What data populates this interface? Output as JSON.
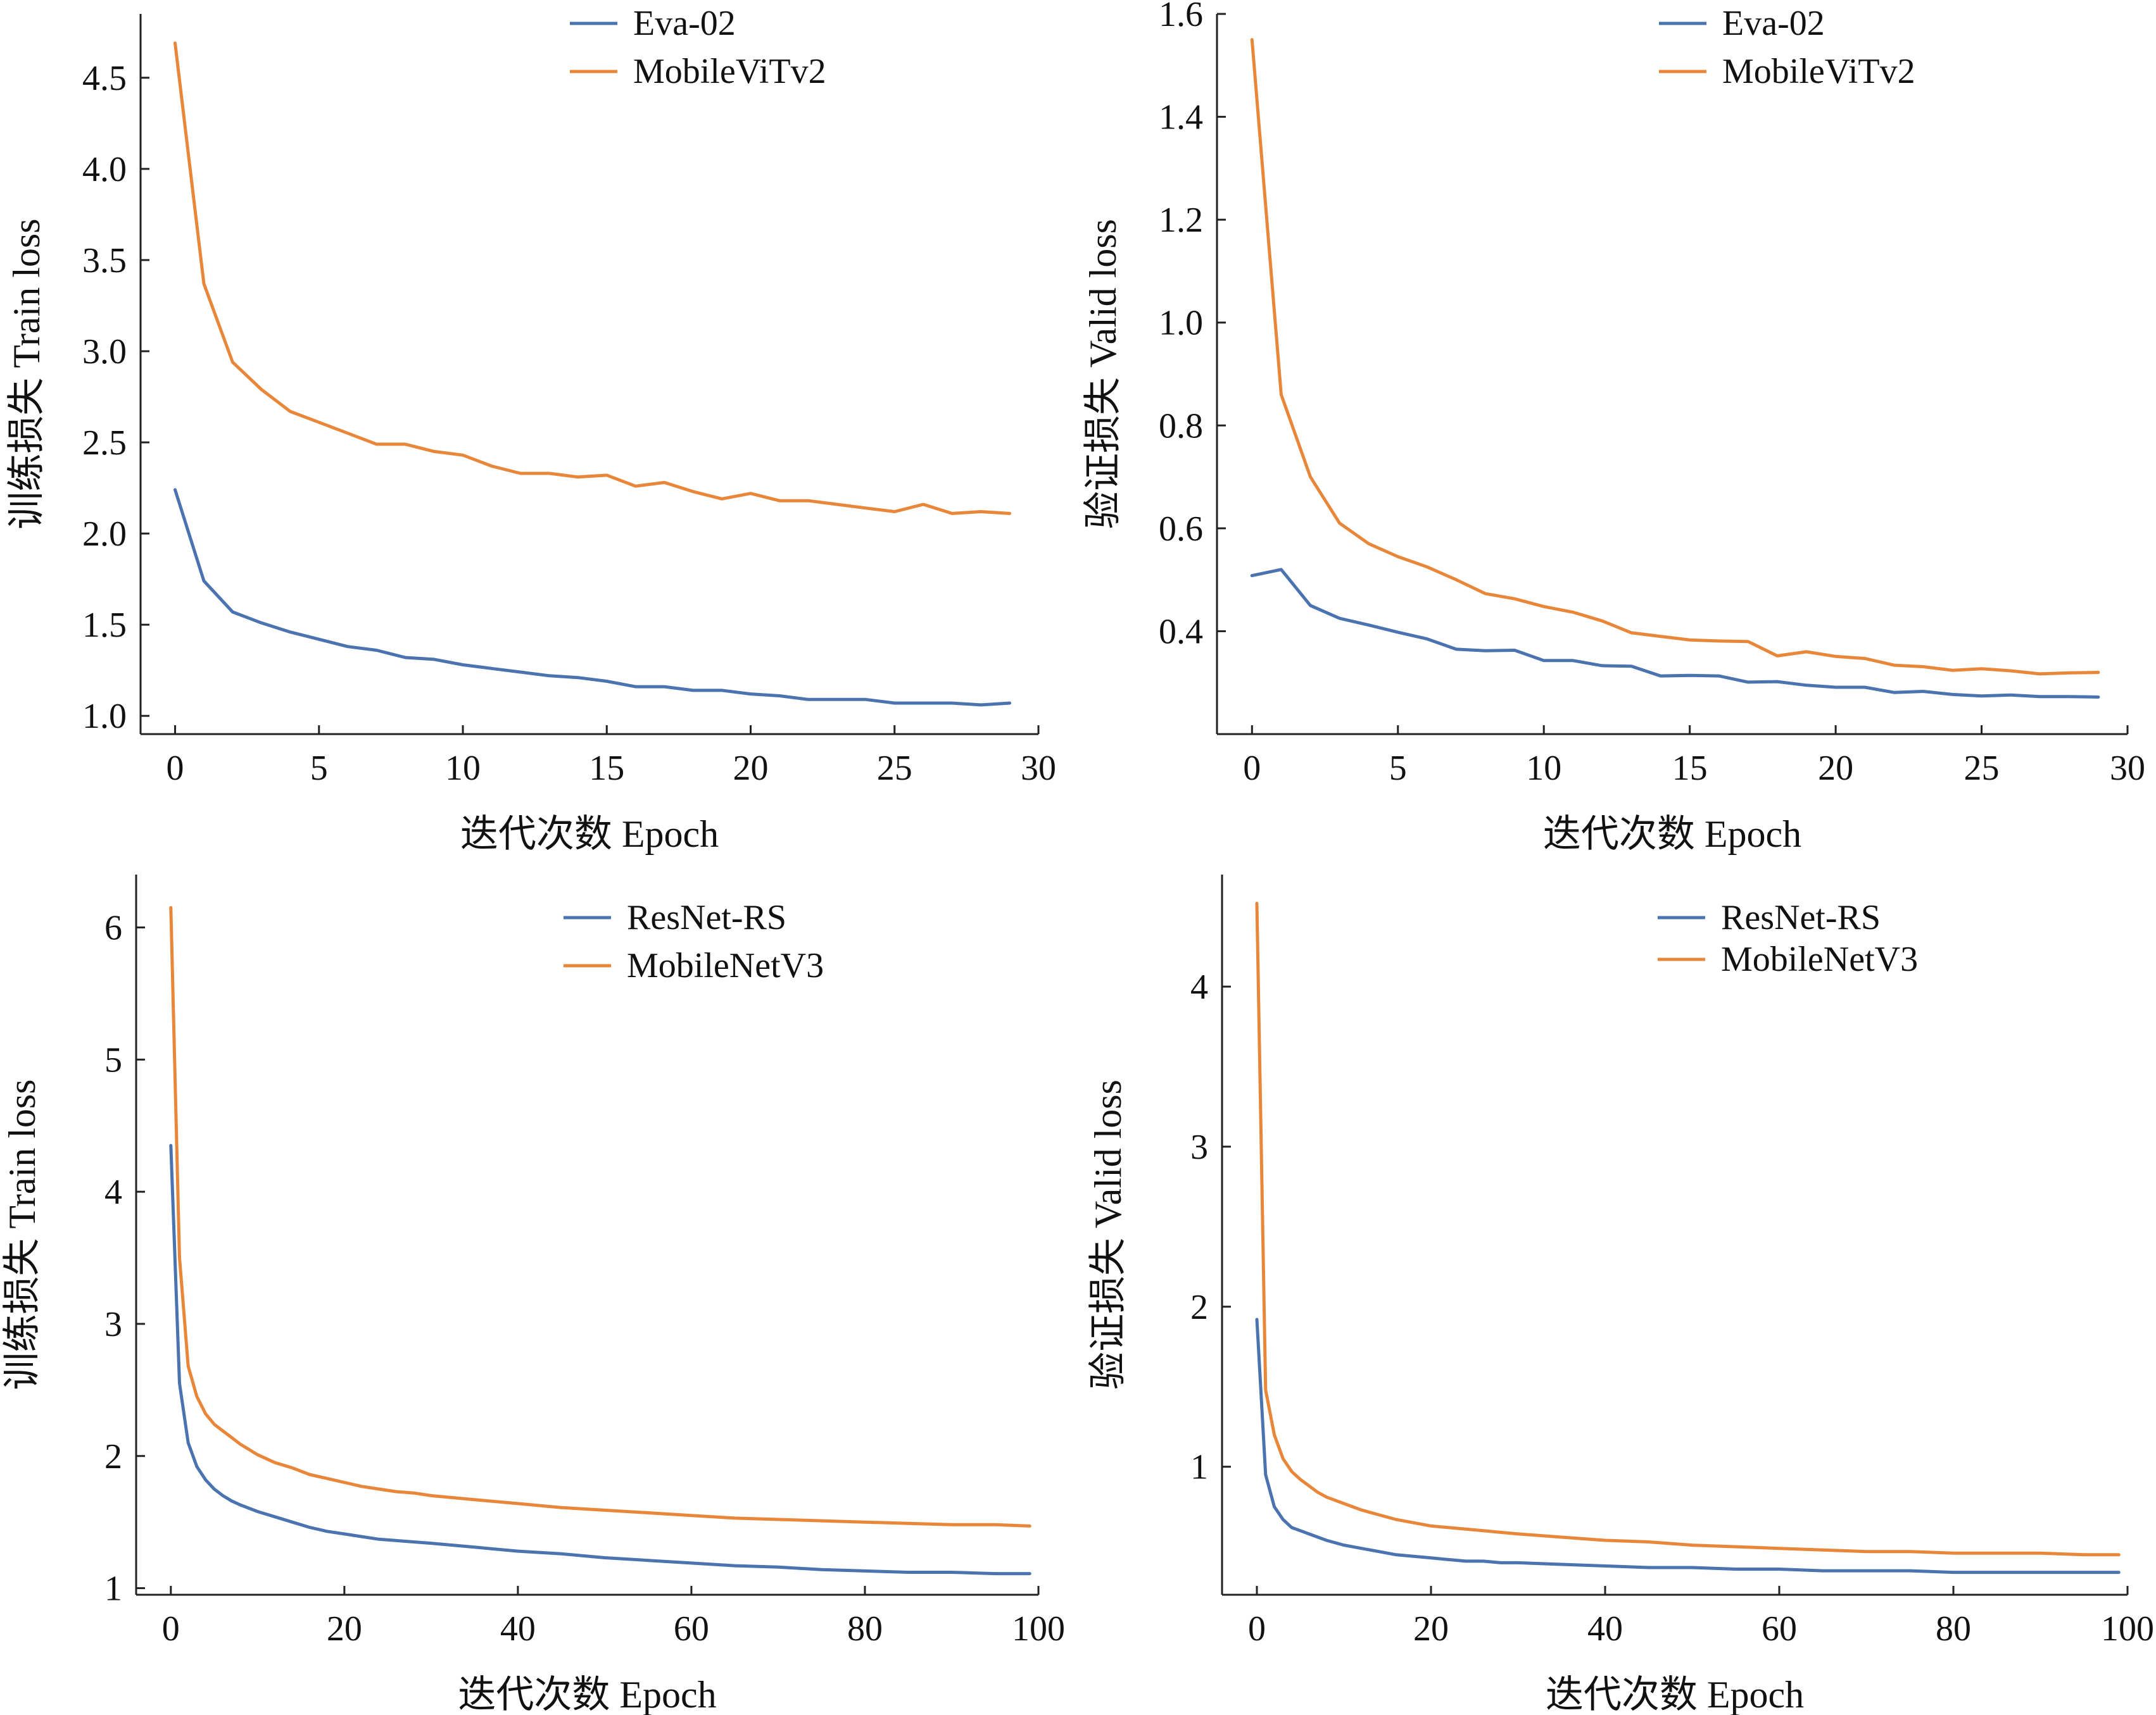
{
  "colors": {
    "blue": "#4a73b0",
    "orange": "#e8873a",
    "axis": "#222222"
  },
  "chart_data": [
    {
      "type": "line",
      "xlabel": "迭代次数 Epoch",
      "ylabel": "训练损失 Train loss",
      "xlim": [
        -1.2,
        30
      ],
      "ylim": [
        0.9,
        4.85
      ],
      "xticks": [
        0,
        5,
        10,
        15,
        20,
        25,
        30
      ],
      "yticks": [
        1.0,
        1.5,
        2.0,
        2.5,
        3.0,
        3.5,
        4.0,
        4.5
      ],
      "y_decimals": 1,
      "legend": "top-right",
      "series": [
        {
          "name": "Eva-02",
          "color": "#4a73b0",
          "x": [
            0,
            1,
            2,
            3,
            4,
            5,
            6,
            7,
            8,
            9,
            10,
            11,
            12,
            13,
            14,
            15,
            16,
            17,
            18,
            19,
            20,
            21,
            22,
            23,
            24,
            25,
            26,
            27,
            28,
            29
          ],
          "y": [
            2.24,
            1.74,
            1.57,
            1.51,
            1.46,
            1.42,
            1.38,
            1.36,
            1.32,
            1.31,
            1.28,
            1.26,
            1.24,
            1.22,
            1.21,
            1.19,
            1.16,
            1.16,
            1.14,
            1.14,
            1.12,
            1.11,
            1.09,
            1.09,
            1.09,
            1.07,
            1.07,
            1.07,
            1.06,
            1.07
          ]
        },
        {
          "name": "MobileViTv2",
          "color": "#e8873a",
          "x": [
            0,
            1,
            2,
            3,
            4,
            5,
            6,
            7,
            8,
            9,
            10,
            11,
            12,
            13,
            14,
            15,
            16,
            17,
            18,
            19,
            20,
            21,
            22,
            23,
            24,
            25,
            26,
            27,
            28,
            29
          ],
          "y": [
            4.69,
            3.37,
            2.94,
            2.79,
            2.67,
            2.61,
            2.55,
            2.49,
            2.49,
            2.45,
            2.43,
            2.37,
            2.33,
            2.33,
            2.31,
            2.32,
            2.26,
            2.28,
            2.23,
            2.19,
            2.22,
            2.18,
            2.18,
            2.16,
            2.14,
            2.12,
            2.16,
            2.11,
            2.12,
            2.11
          ]
        }
      ]
    },
    {
      "type": "line",
      "xlabel": "迭代次数 Epoch",
      "ylabel": "验证损失 Valid loss",
      "xlim": [
        -1.2,
        30
      ],
      "ylim": [
        0.2,
        1.6
      ],
      "xticks": [
        0,
        5,
        10,
        15,
        20,
        25,
        30
      ],
      "yticks": [
        0.4,
        0.6,
        0.8,
        1.0,
        1.2,
        1.4,
        1.6
      ],
      "y_decimals": 1,
      "legend": "top-right",
      "series": [
        {
          "name": "Eva-02",
          "color": "#4a73b0",
          "x": [
            0,
            1,
            2,
            3,
            4,
            5,
            6,
            7,
            8,
            9,
            10,
            11,
            12,
            13,
            14,
            15,
            16,
            17,
            18,
            19,
            20,
            21,
            22,
            23,
            24,
            25,
            26,
            27,
            28,
            29
          ],
          "y": [
            0.508,
            0.52,
            0.45,
            0.425,
            0.412,
            0.398,
            0.385,
            0.365,
            0.362,
            0.363,
            0.343,
            0.343,
            0.333,
            0.332,
            0.313,
            0.314,
            0.313,
            0.301,
            0.302,
            0.295,
            0.291,
            0.291,
            0.281,
            0.283,
            0.277,
            0.274,
            0.276,
            0.273,
            0.273,
            0.272
          ]
        },
        {
          "name": "MobileViTv2",
          "color": "#e8873a",
          "x": [
            0,
            1,
            2,
            3,
            4,
            5,
            6,
            7,
            8,
            9,
            10,
            11,
            12,
            13,
            14,
            15,
            16,
            17,
            18,
            19,
            20,
            21,
            22,
            23,
            24,
            25,
            26,
            27,
            28,
            29
          ],
          "y": [
            1.55,
            0.86,
            0.7,
            0.61,
            0.57,
            0.545,
            0.525,
            0.5,
            0.473,
            0.463,
            0.448,
            0.437,
            0.42,
            0.397,
            0.39,
            0.383,
            0.381,
            0.38,
            0.352,
            0.36,
            0.351,
            0.347,
            0.334,
            0.331,
            0.324,
            0.327,
            0.323,
            0.317,
            0.319,
            0.32
          ]
        }
      ]
    },
    {
      "type": "line",
      "xlabel": "迭代次数 Epoch",
      "ylabel": "训练损失 Train loss",
      "xlim": [
        -4,
        100
      ],
      "ylim": [
        0.95,
        6.4
      ],
      "xticks": [
        0,
        20,
        40,
        60,
        80,
        100
      ],
      "yticks": [
        1,
        2,
        3,
        4,
        5,
        6
      ],
      "y_decimals": 0,
      "legend": "top-right",
      "series": [
        {
          "name": "ResNet-RS",
          "color": "#4a73b0",
          "x": [
            0,
            1,
            2,
            3,
            4,
            5,
            6,
            7,
            8,
            10,
            12,
            14,
            16,
            18,
            20,
            22,
            24,
            26,
            28,
            30,
            35,
            40,
            45,
            50,
            55,
            60,
            65,
            70,
            75,
            80,
            85,
            90,
            95,
            99
          ],
          "y": [
            4.35,
            2.55,
            2.1,
            1.92,
            1.82,
            1.75,
            1.7,
            1.66,
            1.63,
            1.58,
            1.54,
            1.5,
            1.46,
            1.43,
            1.41,
            1.39,
            1.37,
            1.36,
            1.35,
            1.34,
            1.31,
            1.28,
            1.26,
            1.23,
            1.21,
            1.19,
            1.17,
            1.16,
            1.14,
            1.13,
            1.12,
            1.12,
            1.11,
            1.11
          ]
        },
        {
          "name": "MobileNetV3",
          "color": "#e8873a",
          "x": [
            0,
            1,
            2,
            3,
            4,
            5,
            6,
            7,
            8,
            10,
            12,
            14,
            16,
            18,
            20,
            22,
            24,
            26,
            28,
            30,
            35,
            40,
            45,
            50,
            55,
            60,
            65,
            70,
            75,
            80,
            85,
            90,
            95,
            99
          ],
          "y": [
            6.15,
            3.5,
            2.68,
            2.45,
            2.32,
            2.24,
            2.19,
            2.14,
            2.09,
            2.01,
            1.95,
            1.91,
            1.86,
            1.83,
            1.8,
            1.77,
            1.75,
            1.73,
            1.72,
            1.7,
            1.67,
            1.64,
            1.61,
            1.59,
            1.57,
            1.55,
            1.53,
            1.52,
            1.51,
            1.5,
            1.49,
            1.48,
            1.48,
            1.47
          ]
        }
      ]
    },
    {
      "type": "line",
      "xlabel": "迭代次数 Epoch",
      "ylabel": "验证损失 Valid loss",
      "xlim": [
        -4,
        100
      ],
      "ylim": [
        0.2,
        4.7
      ],
      "xticks": [
        0,
        20,
        40,
        60,
        80,
        100
      ],
      "yticks": [
        1,
        2,
        3,
        4
      ],
      "y_decimals": 0,
      "legend": "top-right",
      "series": [
        {
          "name": "ResNet-RS",
          "color": "#4a73b0",
          "x": [
            0,
            1,
            2,
            3,
            4,
            5,
            6,
            7,
            8,
            10,
            12,
            14,
            16,
            18,
            20,
            22,
            24,
            26,
            28,
            30,
            35,
            40,
            45,
            50,
            55,
            60,
            65,
            70,
            75,
            80,
            85,
            90,
            95,
            99
          ],
          "y": [
            1.92,
            0.95,
            0.75,
            0.67,
            0.62,
            0.6,
            0.58,
            0.56,
            0.54,
            0.51,
            0.49,
            0.47,
            0.45,
            0.44,
            0.43,
            0.42,
            0.41,
            0.41,
            0.4,
            0.4,
            0.39,
            0.38,
            0.37,
            0.37,
            0.36,
            0.36,
            0.35,
            0.35,
            0.35,
            0.34,
            0.34,
            0.34,
            0.34,
            0.34
          ]
        },
        {
          "name": "MobileNetV3",
          "color": "#e8873a",
          "x": [
            0,
            1,
            2,
            3,
            4,
            5,
            6,
            7,
            8,
            10,
            12,
            14,
            16,
            18,
            20,
            22,
            24,
            26,
            28,
            30,
            35,
            40,
            45,
            50,
            55,
            60,
            65,
            70,
            75,
            80,
            85,
            90,
            95,
            99
          ],
          "y": [
            4.52,
            1.48,
            1.2,
            1.05,
            0.97,
            0.92,
            0.88,
            0.84,
            0.81,
            0.77,
            0.73,
            0.7,
            0.67,
            0.65,
            0.63,
            0.62,
            0.61,
            0.6,
            0.59,
            0.58,
            0.56,
            0.54,
            0.53,
            0.51,
            0.5,
            0.49,
            0.48,
            0.47,
            0.47,
            0.46,
            0.46,
            0.46,
            0.45,
            0.45
          ]
        }
      ]
    }
  ]
}
